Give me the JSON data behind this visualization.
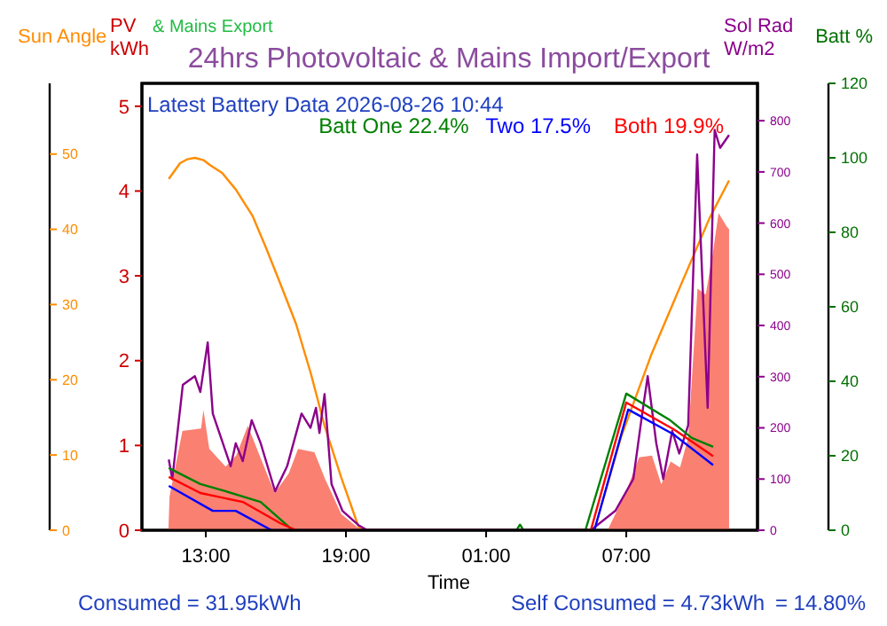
{
  "chart_data": [
    {
      "type": "line",
      "title": "24hrs Photovoltaic & Mains Import/Export",
      "xlabel": "Time",
      "ylabel": "PV kWh",
      "y2label": "Sol Rad W/m2",
      "y3label": "Batt %",
      "annotations": [
        "Latest Battery Data 2026-08-26 10:44",
        "& Mains Export",
        "Consumed = 31.95kWh",
        "Self Consumed = 4.73kWh",
        "= 14.80%"
      ],
      "xlim": [
        "2026-08-25T10:16",
        "2026-08-26T12:37"
      ],
      "xticks": [
        {
          "value": "2026-08-25T13:00",
          "label": "13:00"
        },
        {
          "value": "2026-08-25T19:00",
          "label": "19:00"
        },
        {
          "value": "2026-08-26T01:00",
          "label": "01:00"
        },
        {
          "value": "2026-08-26T07:00",
          "label": "07:00"
        }
      ],
      "ylim": [
        0,
        5.27
      ],
      "yticks": [
        0,
        1,
        2,
        3,
        4,
        5
      ],
      "y2lim": [
        0,
        873
      ],
      "y2ticks": [
        0,
        100,
        200,
        300,
        400,
        500,
        600,
        700,
        800
      ],
      "y3lim": [
        0,
        120
      ],
      "y3ticks": [
        0,
        20,
        40,
        60,
        80,
        100,
        120
      ],
      "legend": "top right",
      "grid": false,
      "series": [
        {
          "type": "area",
          "color": "#fa8072",
          "x": [
            "2026-08-25T11:24",
            "2026-08-25T11:27",
            "2026-08-25T12:00",
            "2026-08-25T12:48",
            "2026-08-25T12:54",
            "2026-08-25T13:09",
            "2026-08-25T13:51",
            "2026-08-25T14:18",
            "2026-08-25T14:48",
            "2026-08-25T15:21",
            "2026-08-25T15:57",
            "2026-08-25T16:33",
            "2026-08-25T16:57",
            "2026-08-25T17:39",
            "2026-08-25T18:06",
            "2026-08-25T18:48",
            "2026-08-25T19:33",
            "2026-08-25T20:00",
            "2026-08-26T06:12",
            "2026-08-26T07:00",
            "2026-08-26T07:33",
            "2026-08-26T08:06",
            "2026-08-26T08:30",
            "2026-08-26T08:54",
            "2026-08-26T09:18",
            "2026-08-26T09:39",
            "2026-08-26T10:03",
            "2026-08-26T10:24",
            "2026-08-26T10:42",
            "2026-08-26T10:57",
            "2026-08-26T11:18",
            "2026-08-26T11:24"
          ],
          "values": [
            0,
            0.4,
            1.17,
            1.2,
            1.42,
            0.96,
            0.75,
            0.88,
            1.23,
            0.85,
            0.44,
            0.67,
            0.96,
            0.92,
            0.61,
            0.19,
            0.02,
            0,
            0,
            0.46,
            0.86,
            0.88,
            0.54,
            0.81,
            0.74,
            1.09,
            2.85,
            2.78,
            3.26,
            3.74,
            3.58,
            3.55
          ]
        },
        {
          "axis": "y2",
          "color": "#8b008b",
          "x": [
            "2026-08-25T11:25",
            "2026-08-25T11:34",
            "2026-08-25T12:01",
            "2026-08-25T12:32",
            "2026-08-25T12:46",
            "2026-08-25T13:05",
            "2026-08-25T13:18",
            "2026-08-25T14:04",
            "2026-08-25T14:17",
            "2026-08-25T14:35",
            "2026-08-25T14:58",
            "2026-08-25T15:21",
            "2026-08-25T15:58",
            "2026-08-25T16:29",
            "2026-08-25T17:06",
            "2026-08-25T17:29",
            "2026-08-25T17:43",
            "2026-08-25T17:52",
            "2026-08-25T18:05",
            "2026-08-25T18:23",
            "2026-08-25T18:51",
            "2026-08-25T19:32",
            "2026-08-25T19:55",
            "2026-08-26T05:29",
            "2026-08-26T06:32",
            "2026-08-26T07:18",
            "2026-08-26T07:41",
            "2026-08-26T07:55",
            "2026-08-26T08:17",
            "2026-08-26T08:35",
            "2026-08-26T08:58",
            "2026-08-26T09:16",
            "2026-08-26T09:39",
            "2026-08-26T10:02",
            "2026-08-26T10:29",
            "2026-08-26T10:47",
            "2026-08-26T11:01",
            "2026-08-26T11:24"
          ],
          "values": [
            138,
            100,
            284,
            301,
            270,
            367,
            228,
            125,
            170,
            135,
            215,
            170,
            76,
            125,
            228,
            200,
            239,
            190,
            266,
            90,
            38,
            10,
            0,
            0,
            38,
            100,
            228,
            301,
            170,
            100,
            194,
            150,
            205,
            734,
            239,
            782,
            747,
            772
          ]
        },
        {
          "axis": "y3",
          "name": "Batt One 22.4%",
          "color": "#008000",
          "x": [
            "2026-08-25T11:25",
            "2026-08-25T12:46",
            "2026-08-25T13:50",
            "2026-08-25T15:21",
            "2026-08-25T16:43",
            "2026-08-26T02:18",
            "2026-08-26T02:27",
            "2026-08-26T02:36",
            "2026-08-26T05:15",
            "2026-08-26T07:00",
            "2026-08-26T08:53",
            "2026-08-26T09:48",
            "2026-08-26T10:43"
          ],
          "values": [
            16.7,
            12.4,
            10.5,
            7.6,
            0,
            0,
            1.5,
            0,
            0,
            36.7,
            29.5,
            24.8,
            22.4
          ]
        },
        {
          "axis": "y3",
          "name": "Two 17.5%",
          "color": "#0000ff",
          "x": [
            "2026-08-25T11:25",
            "2026-08-25T13:18",
            "2026-08-25T14:17",
            "2026-08-25T15:49",
            "2026-08-26T05:38",
            "2026-08-26T07:05",
            "2026-08-26T09:02",
            "2026-08-26T10:43"
          ],
          "values": [
            11.9,
            5.2,
            5.2,
            0,
            0,
            32.4,
            25.7,
            17.5
          ]
        },
        {
          "axis": "y3",
          "name": "Both 19.9%",
          "color": "#ff0000",
          "x": [
            "2026-08-25T11:25",
            "2026-08-25T12:46",
            "2026-08-25T14:35",
            "2026-08-25T16:11",
            "2026-08-25T16:52",
            "2026-08-26T05:29",
            "2026-08-26T07:00",
            "2026-08-26T09:02",
            "2026-08-26T10:43"
          ],
          "values": [
            14.3,
            10,
            7.6,
            1.9,
            0,
            0,
            34.3,
            27.1,
            19.9
          ]
        }
      ]
    },
    {
      "type": "line",
      "ylabel": "Sun Angle",
      "tick_labels": "y",
      "xlim": [
        "2026-08-25T10:16",
        "2026-08-26T12:37"
      ],
      "ylim": [
        0,
        59.4
      ],
      "yticks": [
        0,
        10,
        20,
        30,
        40,
        50
      ],
      "series": [
        {
          "color": "#ff8c00",
          "x": [
            "2026-08-25T11:25",
            "2026-08-25T11:54",
            "2026-08-25T12:12",
            "2026-08-25T12:32",
            "2026-08-25T12:54",
            "2026-08-25T13:12",
            "2026-08-25T13:42",
            "2026-08-25T14:17",
            "2026-08-25T15:00",
            "2026-08-25T15:35",
            "2026-08-25T16:12",
            "2026-08-25T16:52",
            "2026-08-25T17:30",
            "2026-08-25T18:05",
            "2026-08-25T18:48",
            "2026-08-25T19:32",
            "2026-08-25T19:42",
            "2026-08-26T05:38",
            "2026-08-26T06:46",
            "2026-08-26T08:04",
            "2026-08-26T09:16",
            "2026-08-26T10:34",
            "2026-08-26T11:24"
          ],
          "values": [
            46.7,
            48.8,
            49.3,
            49.5,
            49.2,
            48.5,
            47.5,
            45.3,
            41.8,
            37.5,
            32.7,
            27.4,
            20.8,
            13.9,
            7.0,
            0.5,
            0,
            0,
            12.3,
            23.3,
            32.1,
            41.5,
            46.5
          ]
        }
      ]
    }
  ]
}
